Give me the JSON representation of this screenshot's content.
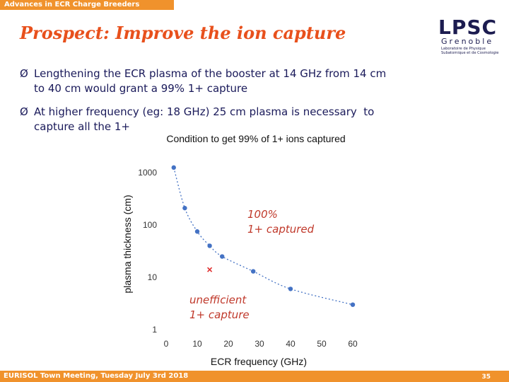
{
  "header": {
    "section_title": "Advances in ECR Charge Breeders"
  },
  "slide": {
    "title": "Prospect: Improve the ion capture",
    "bullets": [
      {
        "marker": "Ø",
        "line1": "Lengthening the ECR plasma of the booster at 14 GHz from 14 cm",
        "line2": "to 40 cm would grant a 99% 1+ capture"
      },
      {
        "marker": "Ø",
        "line1": "At higher frequency (eg: 18 GHz) 25 cm plasma is necessary  to",
        "line2": "capture all the 1+"
      }
    ]
  },
  "logo": {
    "letters": "LPSC",
    "city": "Grenoble",
    "line1": "Laboratoire de Physique",
    "line2": "Subatomique et de Cosmologie"
  },
  "annotations": {
    "upper": "100%\n1+ captured",
    "lower": "unefficient\n1+ capture"
  },
  "chart_data": {
    "type": "scatter",
    "title": "Condition to get 99% of 1+ ions captured",
    "xlabel": "ECR frequency (GHz)",
    "ylabel": "plasma thickness (cm)",
    "xlim": [
      0,
      60
    ],
    "ylim": [
      1,
      1000
    ],
    "y_scale": "log",
    "x_ticks": [
      0,
      10,
      20,
      30,
      40,
      50,
      60
    ],
    "y_ticks": [
      1,
      10,
      100,
      1000
    ],
    "series": [
      {
        "x": [
          2.45,
          6,
          10,
          14,
          18,
          28,
          40,
          60
        ],
        "y": [
          1250,
          210,
          75,
          40,
          25,
          13,
          6,
          3
        ],
        "color": "#4472c4",
        "marker": "dot"
      }
    ],
    "points": [
      {
        "x": 14,
        "y": 14,
        "marker": "x",
        "color": "#e03030"
      }
    ],
    "grid": false
  },
  "footer": {
    "left_text": "EURISOL Town Meeting, Tuesday July 3rd 2018",
    "page_number": "35"
  }
}
